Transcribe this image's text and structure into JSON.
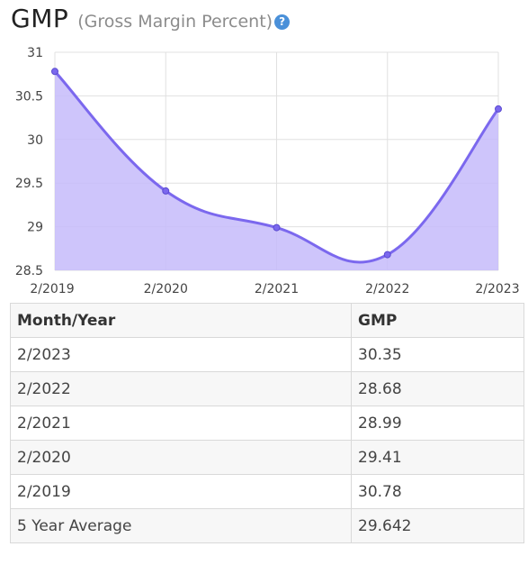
{
  "header": {
    "title": "GMP",
    "subtitle": "(Gross Margin Percent)",
    "help_glyph": "?"
  },
  "colors": {
    "line": "#7b68ee",
    "area": "#c6bbfa",
    "grid": "#e0e0e0",
    "help_icon": "#4a90d9"
  },
  "chart_data": {
    "type": "area",
    "x": [
      "2/2019",
      "2/2020",
      "2/2021",
      "2/2022",
      "2/2023"
    ],
    "series": [
      {
        "values": [
          30.78,
          29.41,
          28.99,
          28.68,
          30.35
        ]
      }
    ],
    "yticks": [
      "31",
      "30.5",
      "30",
      "29.5",
      "29",
      "28.5"
    ],
    "ylim": [
      28.5,
      31
    ],
    "grid": true,
    "smooth": true
  },
  "table": {
    "headers": [
      "Month/Year",
      "GMP"
    ],
    "rows": [
      [
        "2/2023",
        "30.35"
      ],
      [
        "2/2022",
        "28.68"
      ],
      [
        "2/2021",
        "28.99"
      ],
      [
        "2/2020",
        "29.41"
      ],
      [
        "2/2019",
        "30.78"
      ],
      [
        "5 Year Average",
        "29.642"
      ]
    ]
  }
}
